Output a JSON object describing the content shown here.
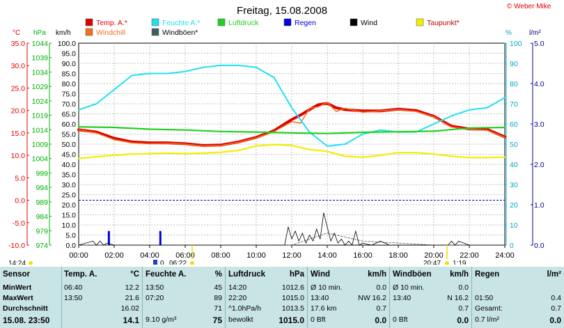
{
  "chart_data": {
    "type": "line",
    "title": "Freitag, 15.08.2008",
    "copyright": "© Weber Mike",
    "x_ticks": [
      "00:00",
      "02:00",
      "04:00",
      "06:00",
      "08:00",
      "10:00",
      "12:00",
      "14:00",
      "16:00",
      "18:00",
      "20:00",
      "22:00",
      "24:00"
    ],
    "xlim": [
      0,
      24
    ],
    "axes": {
      "temp": {
        "unit": "°C",
        "ticks": [
          "35.0",
          "30.0",
          "25.0",
          "20.0",
          "15.0",
          "10.0",
          "5.0",
          "0.0",
          "-5.0",
          "-10.0"
        ],
        "range": [
          -10,
          35
        ],
        "color": "#e00000"
      },
      "pressure": {
        "unit": "hPa",
        "ticks": [
          "1044",
          "1039",
          "1034",
          "1029",
          "1024",
          "1019",
          "1014",
          "1009",
          "1004",
          "999",
          "994",
          "989",
          "984",
          "979",
          "974"
        ],
        "range": [
          974,
          1044
        ],
        "color": "#00b000"
      },
      "wind": {
        "unit": "km/h",
        "ticks": [
          "100.0",
          "95.0",
          "90.0",
          "85.0",
          "80.0",
          "75.0",
          "70.0",
          "65.0",
          "60.0",
          "55.0",
          "50.0",
          "45.0",
          "40.0",
          "35.0",
          "30.0",
          "25.0",
          "20.0",
          "15.0",
          "10.0",
          "5.0",
          "0.0"
        ],
        "range": [
          0,
          100
        ],
        "color": "#000000"
      },
      "humidity": {
        "unit": "%",
        "ticks": [
          "100",
          "90",
          "80",
          "70",
          "60",
          "50",
          "40",
          "30",
          "20",
          "10",
          "0"
        ],
        "range": [
          0,
          100
        ],
        "color": "#00a8c8"
      },
      "rain": {
        "unit": "l/m²",
        "ticks": [
          "5.0",
          "4.0",
          "3.0",
          "2.0",
          "1.0",
          "0.0"
        ],
        "range": [
          0,
          5
        ],
        "color": "#000080"
      }
    },
    "legend": [
      {
        "name": "Temp. A.*",
        "color": "#e00000"
      },
      {
        "name": "Feuchte A.*",
        "color": "#20e0f0"
      },
      {
        "name": "Luftdruck",
        "color": "#20d020"
      },
      {
        "name": "Regen",
        "color": "#0000e0"
      },
      {
        "name": "Wind",
        "color": "#000000"
      },
      {
        "name": "Taupunkt*",
        "color": "#f0f000"
      },
      {
        "name": "Windchill",
        "color": "#f07020"
      },
      {
        "name": "Windböen*",
        "color": "#406060"
      }
    ],
    "series": [
      {
        "name": "Temp. A.*",
        "axis": "temp",
        "color": "#e00000",
        "width": 4,
        "x": [
          0,
          1,
          2,
          3,
          4,
          5,
          6,
          7,
          8,
          9,
          10,
          11,
          12,
          12.5,
          13,
          13.5,
          14,
          14.5,
          15,
          16,
          17,
          18,
          19,
          20,
          21,
          22,
          23,
          24
        ],
        "y": [
          15.7,
          15.2,
          13.8,
          13.0,
          12.8,
          12.8,
          12.6,
          12.2,
          12.3,
          13.0,
          14.0,
          15.5,
          18.0,
          19.0,
          20.2,
          21.3,
          21.6,
          20.6,
          20.2,
          19.9,
          19.9,
          20.3,
          20.0,
          18.7,
          16.5,
          15.9,
          15.8,
          14.1
        ]
      },
      {
        "name": "Windchill",
        "axis": "temp",
        "color": "#f07020",
        "width": 1.5,
        "x": [
          0,
          1,
          2,
          3,
          4,
          5,
          6,
          7,
          8,
          9,
          10,
          11,
          12,
          12.5,
          13,
          13.5,
          14,
          14.5,
          15,
          16,
          17,
          18,
          19,
          20,
          21,
          22,
          23,
          24
        ],
        "y": [
          15.7,
          15.0,
          13.5,
          12.8,
          12.6,
          12.7,
          12.5,
          12.1,
          12.2,
          12.9,
          13.9,
          15.3,
          17.5,
          17.2,
          20.5,
          20.8,
          21.8,
          19.8,
          20.5,
          19.6,
          19.9,
          20.2,
          19.8,
          18.6,
          16.3,
          15.8,
          15.6,
          14.0
        ]
      },
      {
        "name": "Feuchte A.*",
        "axis": "humidity",
        "color": "#20e0f0",
        "width": 2,
        "x": [
          0,
          1,
          2,
          3,
          4,
          5,
          6,
          7,
          8,
          9,
          10,
          11,
          12,
          13,
          14,
          15,
          16,
          17,
          18,
          19,
          20,
          21,
          22,
          23,
          24
        ],
        "y": [
          67,
          70,
          77,
          84,
          85,
          85,
          86,
          88,
          89,
          89,
          88,
          83,
          68,
          56,
          49,
          50,
          55,
          57,
          56,
          56,
          60,
          64,
          67,
          68,
          73
        ]
      },
      {
        "name": "Luftdruck",
        "axis": "pressure",
        "color": "#20d020",
        "width": 2.2,
        "x": [
          0,
          2,
          4,
          6,
          8,
          10,
          12,
          14,
          16,
          18,
          20,
          22,
          24
        ],
        "y": [
          1015.0,
          1014.8,
          1014.2,
          1013.9,
          1013.4,
          1013.2,
          1012.9,
          1012.7,
          1013.1,
          1013.3,
          1013.5,
          1014.6,
          1014.8
        ]
      },
      {
        "name": "Taupunkt*",
        "axis": "temp",
        "color": "#f0f000",
        "width": 2.2,
        "x": [
          0,
          1,
          2,
          3,
          4,
          5,
          6,
          7,
          8,
          9,
          10,
          11,
          12,
          13,
          14,
          15,
          16,
          17,
          18,
          19,
          20,
          21,
          22,
          23,
          24
        ],
        "y": [
          9.3,
          9.7,
          10.0,
          10.3,
          10.4,
          10.5,
          10.4,
          10.5,
          10.7,
          11.1,
          12.1,
          12.4,
          12.2,
          11.3,
          10.9,
          9.8,
          9.6,
          10.0,
          10.6,
          10.6,
          10.3,
          9.8,
          9.5,
          9.5,
          9.6
        ]
      },
      {
        "name": "Windböen*",
        "axis": "wind",
        "color": "#406060",
        "width": 0.8,
        "dashed": true,
        "x": [
          0,
          2,
          4,
          6,
          8,
          10,
          12,
          13,
          14,
          15,
          16,
          18,
          20,
          22,
          24
        ],
        "y": [
          0,
          0,
          0,
          0,
          0,
          0,
          0,
          3,
          6,
          4,
          2,
          1,
          0,
          0,
          0
        ]
      },
      {
        "name": "Wind",
        "axis": "wind",
        "color": "#000000",
        "width": 0.8,
        "x": [
          0,
          0.8,
          1,
          1.2,
          1.4,
          1.6,
          2,
          4,
          8,
          10,
          11.6,
          11.8,
          12,
          12.2,
          12.4,
          12.6,
          12.8,
          13,
          13.2,
          13.4,
          13.6,
          13.8,
          14,
          14.2,
          14.4,
          14.6,
          14.8,
          15,
          15.2,
          15.4,
          15.6,
          15.8,
          16,
          16.5,
          17,
          17.5,
          18,
          19,
          20,
          20.8,
          21,
          21.2,
          21.4,
          22,
          24
        ],
        "y": [
          0,
          2,
          0,
          2,
          0,
          1,
          0,
          0,
          0,
          0,
          0,
          9,
          3,
          7,
          2,
          6,
          1,
          5,
          2,
          8,
          3,
          16,
          9,
          2,
          6,
          1,
          3,
          0,
          2,
          0,
          7,
          0,
          1,
          0,
          2,
          0,
          0,
          0,
          0,
          0,
          2,
          0,
          2,
          0,
          0
        ]
      }
    ],
    "bars": [
      {
        "name": "Regen",
        "axis": "rain",
        "color": "#0000e0",
        "x": [
          1.7,
          4.6
        ],
        "values": [
          0.35,
          0.35
        ]
      }
    ],
    "time_axis_left": "14:24",
    "sunrise": "06:22",
    "sunset": "20:47",
    "moonrise_label": "0",
    "moonset_label": "1:19"
  },
  "table": {
    "sensor": {
      "header": "Sensor",
      "rows": [
        "MinWert",
        "MaxWert",
        "Durchschnitt",
        "15.08. 23:50"
      ]
    },
    "temp": {
      "header": "Temp. A.",
      "unit": "°C",
      "rows": [
        [
          "06:40",
          "12.2"
        ],
        [
          "13:50",
          "21.6"
        ],
        [
          "",
          "16.02"
        ],
        [
          "",
          "14.1"
        ]
      ]
    },
    "humidity": {
      "header": "Feuchte A.",
      "unit": "%",
      "rows": [
        [
          "13:50",
          "45"
        ],
        [
          "07:20",
          "89"
        ],
        [
          "",
          "71"
        ],
        [
          "9.10 g/m³",
          "75"
        ]
      ]
    },
    "pressure": {
      "header": "Luftdruck",
      "unit": "hPa",
      "rows": [
        [
          "14:20",
          "1012.6"
        ],
        [
          "22:20",
          "1015.0"
        ],
        [
          "^1.0hPa/h",
          "1013.5"
        ],
        [
          "bewolkt",
          "1015.0"
        ]
      ]
    },
    "wind": {
      "header": "Wind",
      "unit": "km/h",
      "rows": [
        [
          "Ø 10 min.",
          "0.0"
        ],
        [
          "13:40",
          "NW 16.2"
        ],
        [
          "17.6 km",
          "0.7"
        ],
        [
          "0 Bft",
          "0.0"
        ]
      ]
    },
    "gusts": {
      "header": "Windböen",
      "unit": "km/h",
      "rows": [
        [
          "Ø 10 min.",
          "0.0"
        ],
        [
          "13:40",
          "N 16.2"
        ],
        [
          "",
          "0.7"
        ],
        [
          "0 Bft",
          "0.0"
        ]
      ]
    },
    "rain": {
      "header": "Regen",
      "unit": "l/m²",
      "rows": [
        [
          "",
          ""
        ],
        [
          "01:50",
          "0.4"
        ],
        [
          "Gesamt:",
          "0.7"
        ],
        [
          "0.7 l/m²",
          "0.0"
        ]
      ]
    }
  }
}
